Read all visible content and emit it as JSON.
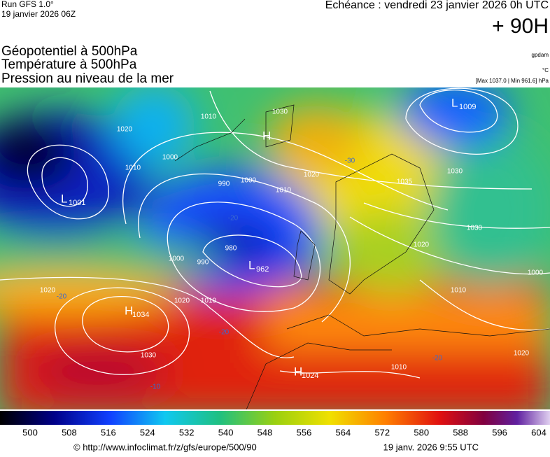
{
  "header": {
    "run": "Run GFS 1.0°",
    "date": "19 janvier 2026 06Z",
    "echeance": "Echéance : vendredi 23 janvier 2026 0h UTC",
    "offset": "+ 90H",
    "titles": [
      "Géopotentiel à 500hPa",
      "Température à 500hPa",
      "Pression au niveau de la mer"
    ],
    "units": [
      "gpdam",
      "°C",
      "[Max 1037.0 | Min 961.6] hPa"
    ]
  },
  "map": {
    "centers": [
      {
        "letter": "L",
        "value": "1009"
      },
      {
        "letter": "H",
        "value": null
      },
      {
        "letter": "L",
        "value": "1001"
      },
      {
        "letter": "L",
        "value": "962"
      },
      {
        "letter": "H",
        "value": "1034"
      },
      {
        "letter": "H",
        "value": "1024"
      }
    ],
    "contour_labels": [
      "1020",
      "1010",
      "1000",
      "1030",
      "1010",
      "990",
      "1000",
      "1010",
      "1020",
      "1030",
      "1030",
      "1020",
      "1000",
      "1010",
      "990",
      "1000",
      "980",
      "1010",
      "1020",
      "1020",
      "1030",
      "1020",
      "1010",
      "1035"
    ],
    "temperature_labels": [
      "-30",
      "-20",
      "-20",
      "-20",
      "-10",
      "-20"
    ]
  },
  "colorbar": {
    "ticks": [
      500,
      508,
      516,
      524,
      532,
      540,
      548,
      556,
      564,
      572,
      580,
      588,
      596,
      604
    ]
  },
  "footer": {
    "url": "© http://www.infoclimat.fr/z/gfs/europe/500/90",
    "time": "19 janv. 2026  9:55 UTC"
  }
}
